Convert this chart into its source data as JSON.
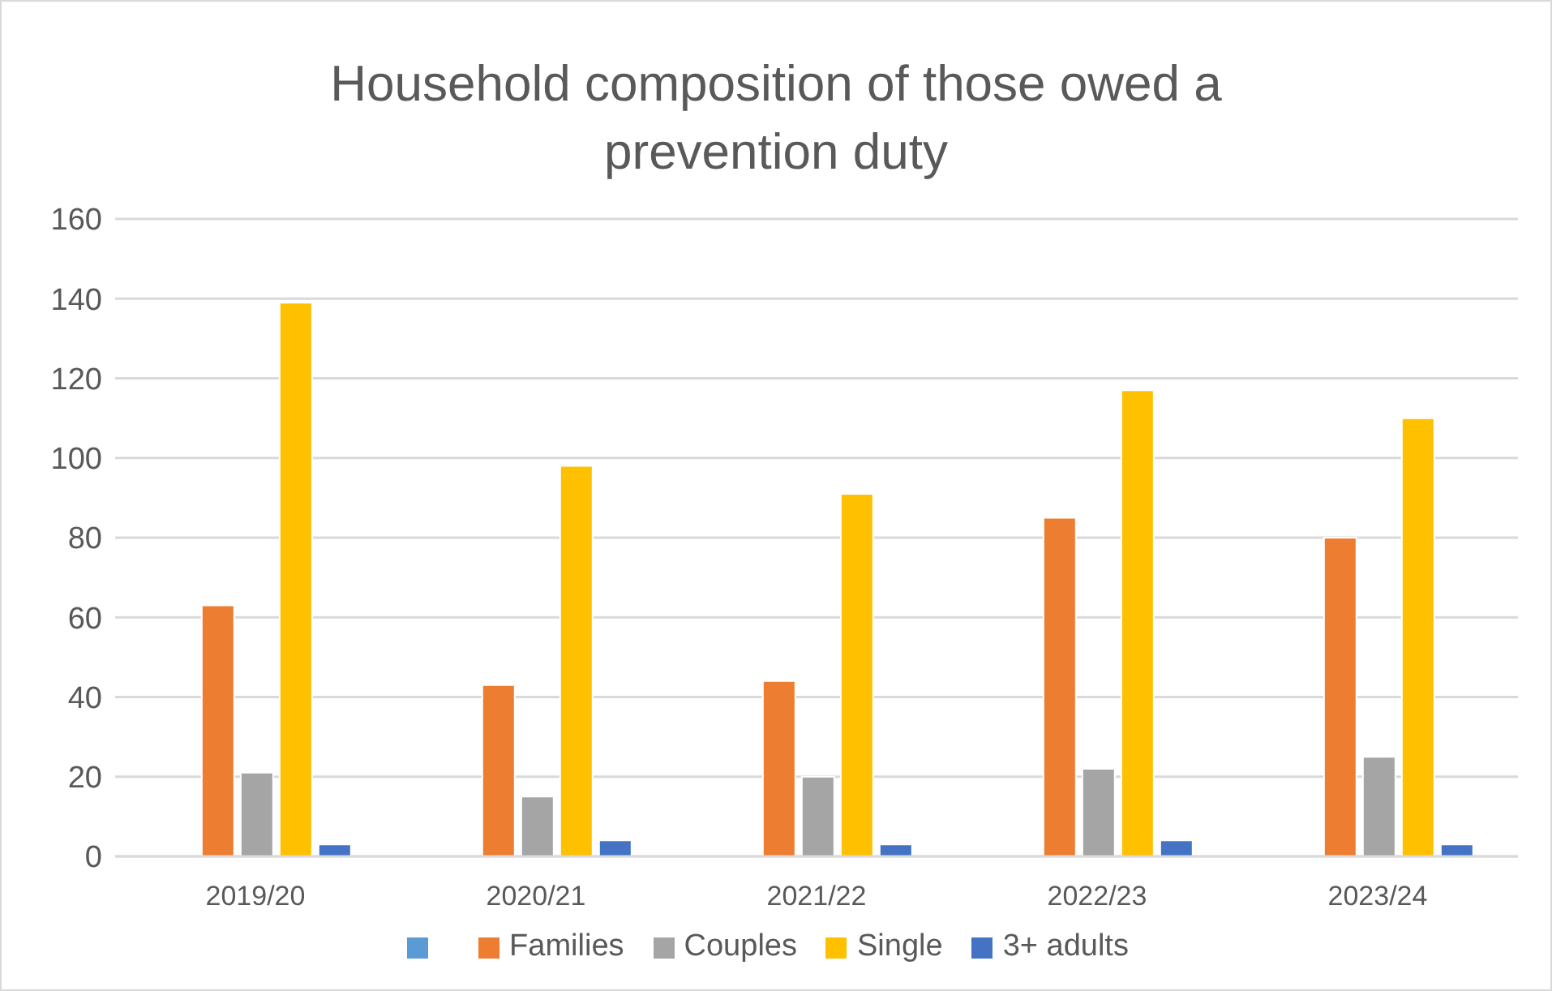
{
  "chart_data": {
    "type": "bar",
    "title": "Household composition of those owed a prevention duty",
    "categories": [
      "2019/20",
      "2020/21",
      "2021/22",
      "2022/23",
      "2023/24"
    ],
    "series": [
      {
        "color": "#5b9bd5",
        "values": [
          null,
          null,
          null,
          null,
          null
        ]
      },
      {
        "name": "Families",
        "color": "#ed7d31",
        "values": [
          63,
          43,
          44,
          85,
          80
        ]
      },
      {
        "name": "Couples",
        "color": "#a5a5a5",
        "values": [
          21,
          15,
          20,
          22,
          25
        ]
      },
      {
        "name": "Single",
        "color": "#ffc000",
        "values": [
          139,
          98,
          91,
          117,
          110
        ]
      },
      {
        "name": "3+ adults",
        "color": "#4472c4",
        "values": [
          3,
          4,
          3,
          4,
          3
        ]
      }
    ],
    "ylim": [
      0,
      160
    ],
    "yticks": [
      0,
      20,
      40,
      60,
      80,
      100,
      120,
      140,
      160
    ],
    "grid": "y",
    "legend": "bottom"
  }
}
